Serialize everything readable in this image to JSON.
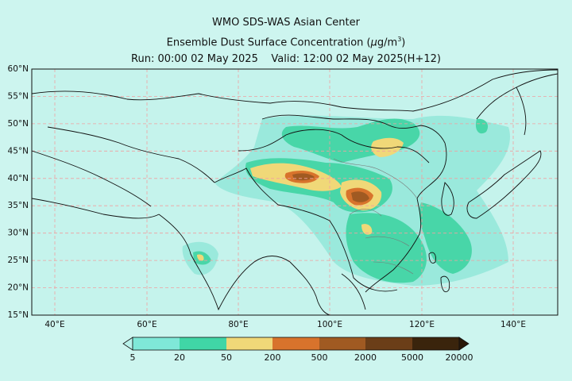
{
  "header": {
    "line1": "WMO SDS-WAS Asian Center",
    "line2_pre": "Ensemble Dust Surface Concentration (",
    "line2_unit_mu": "μ",
    "line2_unit_g": "g/m",
    "line2_unit_exp": "3",
    "line2_post": ")",
    "line3_run": "Run: 00:00 02 May 2025",
    "line3_valid": "Valid: 12:00 02 May 2025(H+12)"
  },
  "axes": {
    "lat_labels": [
      "60°N",
      "55°N",
      "50°N",
      "45°N",
      "40°N",
      "35°N",
      "30°N",
      "25°N",
      "20°N",
      "15°N"
    ],
    "lon_labels": [
      "40°E",
      "60°E",
      "80°E",
      "100°E",
      "120°E",
      "140°E"
    ]
  },
  "colorbar": {
    "levels": [
      "5",
      "20",
      "50",
      "200",
      "500",
      "2000",
      "5000",
      "20000"
    ],
    "colors": [
      "#7fe8d8",
      "#40d6a6",
      "#f0d878",
      "#d8732c",
      "#a05a22",
      "#6b3e18",
      "#3a240c"
    ],
    "under_color": "#b9f2ea",
    "over_color": "#2a1808"
  },
  "colors": {
    "background": "#cdf5ef",
    "grid": "#f0a0a0",
    "border": "#111111",
    "province": "#777777"
  }
}
